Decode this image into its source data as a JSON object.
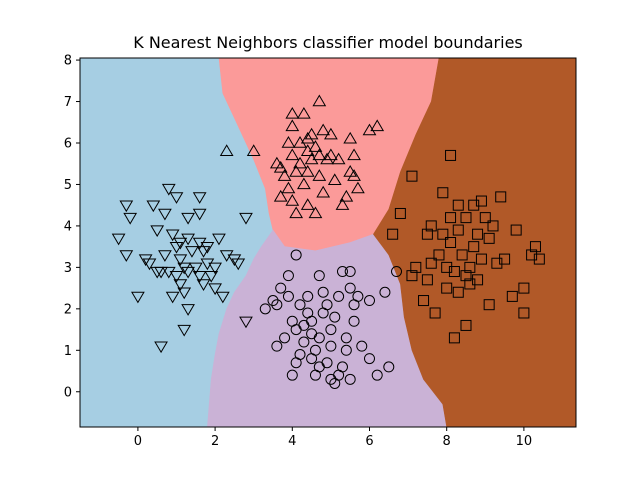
{
  "chart_data": {
    "type": "scatter",
    "title": "K Nearest Neighbors classifier model boundaries",
    "xlabel": "",
    "ylabel": "",
    "xlim": [
      -1.5,
      11.35
    ],
    "ylim": [
      -0.85,
      8.05
    ],
    "xticks": [
      0,
      2,
      4,
      6,
      8,
      10
    ],
    "yticks": [
      0,
      1,
      2,
      3,
      4,
      5,
      6,
      7,
      8
    ],
    "grid": false,
    "legend": "none",
    "regions": [
      {
        "class": "lower-left",
        "color": "#a6cee3",
        "polygon": [
          [
            -1.5,
            8.05
          ],
          [
            2.1,
            8.05
          ],
          [
            2.2,
            7.2
          ],
          [
            2.6,
            6.4
          ],
          [
            3.0,
            5.6
          ],
          [
            3.3,
            4.9
          ],
          [
            3.4,
            4.3
          ],
          [
            3.5,
            3.9
          ],
          [
            3.2,
            3.5
          ],
          [
            3.0,
            3.2
          ],
          [
            2.8,
            2.8
          ],
          [
            2.5,
            2.4
          ],
          [
            2.3,
            2.0
          ],
          [
            2.1,
            1.4
          ],
          [
            2.0,
            0.9
          ],
          [
            1.9,
            0.3
          ],
          [
            1.8,
            -0.85
          ],
          [
            -1.5,
            -0.85
          ]
        ]
      },
      {
        "class": "top",
        "color": "#fb9a99",
        "polygon": [
          [
            2.1,
            8.05
          ],
          [
            7.8,
            8.05
          ],
          [
            7.6,
            7.0
          ],
          [
            7.2,
            6.2
          ],
          [
            6.8,
            5.3
          ],
          [
            6.5,
            4.4
          ],
          [
            6.1,
            3.8
          ],
          [
            5.5,
            3.6
          ],
          [
            4.6,
            3.4
          ],
          [
            3.8,
            3.5
          ],
          [
            3.5,
            3.9
          ],
          [
            3.4,
            4.3
          ],
          [
            3.3,
            4.9
          ],
          [
            3.0,
            5.6
          ],
          [
            2.6,
            6.4
          ],
          [
            2.2,
            7.2
          ]
        ]
      },
      {
        "class": "bottom",
        "color": "#cab2d6",
        "polygon": [
          [
            1.8,
            -0.85
          ],
          [
            8.0,
            -0.85
          ],
          [
            7.9,
            -0.3
          ],
          [
            7.4,
            0.3
          ],
          [
            7.1,
            1.0
          ],
          [
            6.9,
            1.8
          ],
          [
            6.8,
            2.6
          ],
          [
            6.5,
            3.3
          ],
          [
            6.1,
            3.8
          ],
          [
            5.5,
            3.6
          ],
          [
            4.6,
            3.4
          ],
          [
            3.8,
            3.5
          ],
          [
            3.5,
            3.9
          ],
          [
            3.2,
            3.5
          ],
          [
            3.0,
            3.2
          ],
          [
            2.8,
            2.8
          ],
          [
            2.5,
            2.4
          ],
          [
            2.3,
            2.0
          ],
          [
            2.1,
            1.4
          ],
          [
            2.0,
            0.9
          ],
          [
            1.9,
            0.3
          ]
        ]
      },
      {
        "class": "right",
        "color": "#b15928",
        "polygon": [
          [
            7.8,
            8.05
          ],
          [
            11.35,
            8.05
          ],
          [
            11.35,
            -0.85
          ],
          [
            8.0,
            -0.85
          ],
          [
            7.9,
            -0.3
          ],
          [
            7.4,
            0.3
          ],
          [
            7.1,
            1.0
          ],
          [
            6.9,
            1.8
          ],
          [
            6.8,
            2.6
          ],
          [
            6.5,
            3.3
          ],
          [
            6.1,
            3.8
          ],
          [
            6.5,
            4.4
          ],
          [
            6.8,
            5.3
          ],
          [
            7.2,
            6.2
          ],
          [
            7.6,
            7.0
          ]
        ]
      }
    ],
    "series": [
      {
        "marker": "triangle-down",
        "points": [
          [
            -0.5,
            3.7
          ],
          [
            -0.3,
            4.5
          ],
          [
            -0.3,
            3.3
          ],
          [
            -0.2,
            4.2
          ],
          [
            0.0,
            2.3
          ],
          [
            0.2,
            3.2
          ],
          [
            0.3,
            3.1
          ],
          [
            0.4,
            4.5
          ],
          [
            0.5,
            3.9
          ],
          [
            0.5,
            2.9
          ],
          [
            0.6,
            1.1
          ],
          [
            0.6,
            2.9
          ],
          [
            0.7,
            3.3
          ],
          [
            0.7,
            4.3
          ],
          [
            0.8,
            2.9
          ],
          [
            0.8,
            4.9
          ],
          [
            0.9,
            2.3
          ],
          [
            0.9,
            3.8
          ],
          [
            1.0,
            3.5
          ],
          [
            1.0,
            2.8
          ],
          [
            1.0,
            4.7
          ],
          [
            1.1,
            3.6
          ],
          [
            1.1,
            2.6
          ],
          [
            1.1,
            3.2
          ],
          [
            1.2,
            3.0
          ],
          [
            1.2,
            2.4
          ],
          [
            1.2,
            1.5
          ],
          [
            1.3,
            4.2
          ],
          [
            1.3,
            3.7
          ],
          [
            1.3,
            2.9
          ],
          [
            1.3,
            2.0
          ],
          [
            1.4,
            3.4
          ],
          [
            1.5,
            3.0
          ],
          [
            1.6,
            3.6
          ],
          [
            1.6,
            2.8
          ],
          [
            1.6,
            4.3
          ],
          [
            1.6,
            4.7
          ],
          [
            1.7,
            3.4
          ],
          [
            1.7,
            2.6
          ],
          [
            1.8,
            3.5
          ],
          [
            1.8,
            3.1
          ],
          [
            1.9,
            2.8
          ],
          [
            2.0,
            2.5
          ],
          [
            2.0,
            3.0
          ],
          [
            2.1,
            3.7
          ],
          [
            2.2,
            2.3
          ],
          [
            2.3,
            3.3
          ],
          [
            2.5,
            3.2
          ],
          [
            2.6,
            3.1
          ],
          [
            2.8,
            4.2
          ],
          [
            2.8,
            1.7
          ]
        ]
      },
      {
        "marker": "triangle-up",
        "points": [
          [
            2.3,
            5.8
          ],
          [
            3.0,
            5.8
          ],
          [
            3.6,
            5.5
          ],
          [
            3.7,
            4.7
          ],
          [
            3.8,
            5.2
          ],
          [
            3.9,
            6.0
          ],
          [
            3.9,
            4.9
          ],
          [
            4.0,
            5.7
          ],
          [
            4.0,
            6.4
          ],
          [
            4.0,
            4.6
          ],
          [
            4.1,
            5.3
          ],
          [
            4.1,
            4.3
          ],
          [
            4.2,
            6.0
          ],
          [
            4.2,
            5.5
          ],
          [
            4.3,
            6.7
          ],
          [
            4.3,
            5.0
          ],
          [
            4.4,
            5.8
          ],
          [
            4.4,
            5.3
          ],
          [
            4.4,
            4.5
          ],
          [
            4.5,
            6.2
          ],
          [
            4.5,
            5.6
          ],
          [
            4.6,
            5.9
          ],
          [
            4.6,
            4.3
          ],
          [
            4.7,
            7.0
          ],
          [
            4.7,
            5.7
          ],
          [
            4.7,
            5.2
          ],
          [
            4.8,
            6.3
          ],
          [
            4.8,
            4.8
          ],
          [
            4.9,
            5.6
          ],
          [
            5.0,
            6.2
          ],
          [
            5.0,
            5.7
          ],
          [
            5.1,
            5.1
          ],
          [
            5.2,
            5.6
          ],
          [
            5.3,
            4.5
          ],
          [
            5.4,
            4.7
          ],
          [
            5.5,
            6.1
          ],
          [
            5.5,
            5.3
          ],
          [
            5.6,
            5.2
          ],
          [
            5.6,
            5.7
          ],
          [
            5.7,
            4.9
          ],
          [
            6.0,
            6.3
          ],
          [
            6.2,
            6.4
          ],
          [
            4.0,
            6.7
          ],
          [
            4.4,
            6.1
          ],
          [
            3.7,
            5.4
          ]
        ]
      },
      {
        "marker": "circle",
        "points": [
          [
            3.3,
            2.0
          ],
          [
            3.5,
            2.2
          ],
          [
            3.6,
            2.1
          ],
          [
            3.6,
            1.1
          ],
          [
            3.7,
            2.5
          ],
          [
            3.8,
            1.3
          ],
          [
            3.9,
            2.3
          ],
          [
            3.9,
            2.8
          ],
          [
            4.0,
            0.4
          ],
          [
            4.0,
            1.7
          ],
          [
            4.1,
            0.7
          ],
          [
            4.1,
            1.5
          ],
          [
            4.1,
            3.3
          ],
          [
            4.2,
            2.1
          ],
          [
            4.2,
            0.9
          ],
          [
            4.3,
            1.6
          ],
          [
            4.3,
            1.2
          ],
          [
            4.4,
            2.3
          ],
          [
            4.5,
            1.7
          ],
          [
            4.5,
            1.4
          ],
          [
            4.5,
            0.8
          ],
          [
            4.6,
            0.4
          ],
          [
            4.6,
            1.0
          ],
          [
            4.7,
            0.6
          ],
          [
            4.7,
            1.3
          ],
          [
            4.7,
            2.8
          ],
          [
            4.8,
            1.9
          ],
          [
            4.8,
            2.4
          ],
          [
            4.9,
            0.7
          ],
          [
            4.9,
            2.1
          ],
          [
            5.0,
            1.5
          ],
          [
            5.0,
            0.3
          ],
          [
            5.0,
            1.1
          ],
          [
            5.1,
            0.2
          ],
          [
            5.1,
            1.8
          ],
          [
            5.2,
            0.4
          ],
          [
            5.2,
            2.3
          ],
          [
            5.3,
            2.9
          ],
          [
            5.3,
            0.6
          ],
          [
            5.4,
            1.3
          ],
          [
            5.4,
            1.0
          ],
          [
            5.5,
            0.3
          ],
          [
            5.5,
            2.5
          ],
          [
            5.6,
            2.1
          ],
          [
            5.6,
            1.7
          ],
          [
            5.7,
            2.3
          ],
          [
            5.8,
            1.1
          ],
          [
            6.0,
            2.2
          ],
          [
            6.0,
            0.8
          ],
          [
            6.2,
            0.4
          ],
          [
            6.4,
            2.4
          ],
          [
            6.5,
            0.6
          ],
          [
            6.7,
            2.9
          ],
          [
            5.5,
            2.9
          ],
          [
            4.4,
            1.9
          ]
        ]
      },
      {
        "marker": "square",
        "points": [
          [
            6.6,
            3.8
          ],
          [
            6.8,
            4.3
          ],
          [
            7.1,
            5.2
          ],
          [
            7.1,
            2.8
          ],
          [
            7.2,
            3.0
          ],
          [
            7.4,
            2.2
          ],
          [
            7.5,
            3.8
          ],
          [
            7.5,
            2.7
          ],
          [
            7.6,
            3.1
          ],
          [
            7.6,
            4.0
          ],
          [
            7.7,
            1.9
          ],
          [
            7.8,
            3.3
          ],
          [
            7.9,
            3.8
          ],
          [
            7.9,
            4.8
          ],
          [
            8.0,
            3.0
          ],
          [
            8.0,
            2.5
          ],
          [
            8.1,
            3.6
          ],
          [
            8.1,
            4.2
          ],
          [
            8.1,
            5.7
          ],
          [
            8.2,
            1.3
          ],
          [
            8.2,
            2.9
          ],
          [
            8.3,
            3.9
          ],
          [
            8.3,
            4.5
          ],
          [
            8.4,
            3.3
          ],
          [
            8.5,
            1.6
          ],
          [
            8.5,
            2.8
          ],
          [
            8.5,
            4.2
          ],
          [
            8.6,
            3.0
          ],
          [
            8.6,
            2.6
          ],
          [
            8.7,
            3.5
          ],
          [
            8.8,
            2.7
          ],
          [
            8.8,
            3.8
          ],
          [
            8.9,
            4.6
          ],
          [
            8.9,
            3.2
          ],
          [
            9.0,
            4.2
          ],
          [
            9.1,
            2.1
          ],
          [
            9.1,
            3.7
          ],
          [
            9.2,
            4.0
          ],
          [
            9.3,
            3.1
          ],
          [
            9.4,
            4.7
          ],
          [
            9.5,
            3.2
          ],
          [
            9.7,
            2.3
          ],
          [
            9.8,
            3.9
          ],
          [
            10.0,
            1.9
          ],
          [
            10.0,
            2.5
          ],
          [
            10.2,
            3.3
          ],
          [
            10.3,
            3.5
          ],
          [
            10.4,
            3.2
          ],
          [
            8.7,
            4.5
          ],
          [
            8.3,
            2.4
          ]
        ]
      }
    ]
  }
}
